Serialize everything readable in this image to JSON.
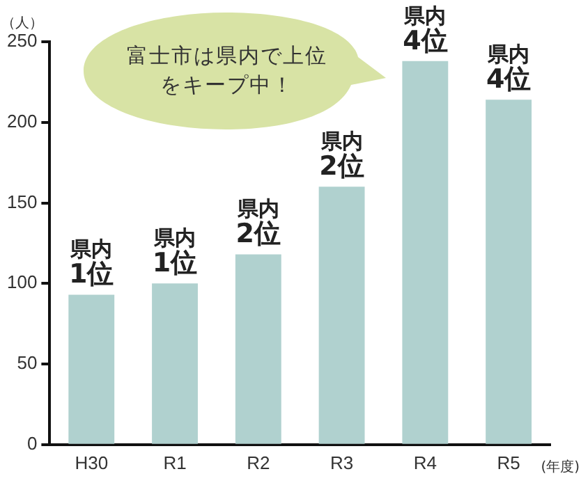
{
  "chart_data": {
    "type": "bar",
    "ylabel": "（人）",
    "xlabel": "(年度)",
    "categories": [
      "H30",
      "R1",
      "R2",
      "R3",
      "R4",
      "R5"
    ],
    "values": [
      93,
      100,
      118,
      160,
      238,
      214
    ],
    "color": "#b0d1cf",
    "value_labels": [
      "県内\n1位",
      "県内\n1位",
      "県内\n2位",
      "県内\n2位",
      "県内\n4位",
      "県内\n4位"
    ],
    "ylim": [
      0,
      250
    ],
    "yticks": [
      0,
      50,
      100,
      150,
      200,
      250
    ],
    "grid": false,
    "legend": false,
    "annotations": [
      "富士市は県内で上位をキープ中！"
    ]
  }
}
